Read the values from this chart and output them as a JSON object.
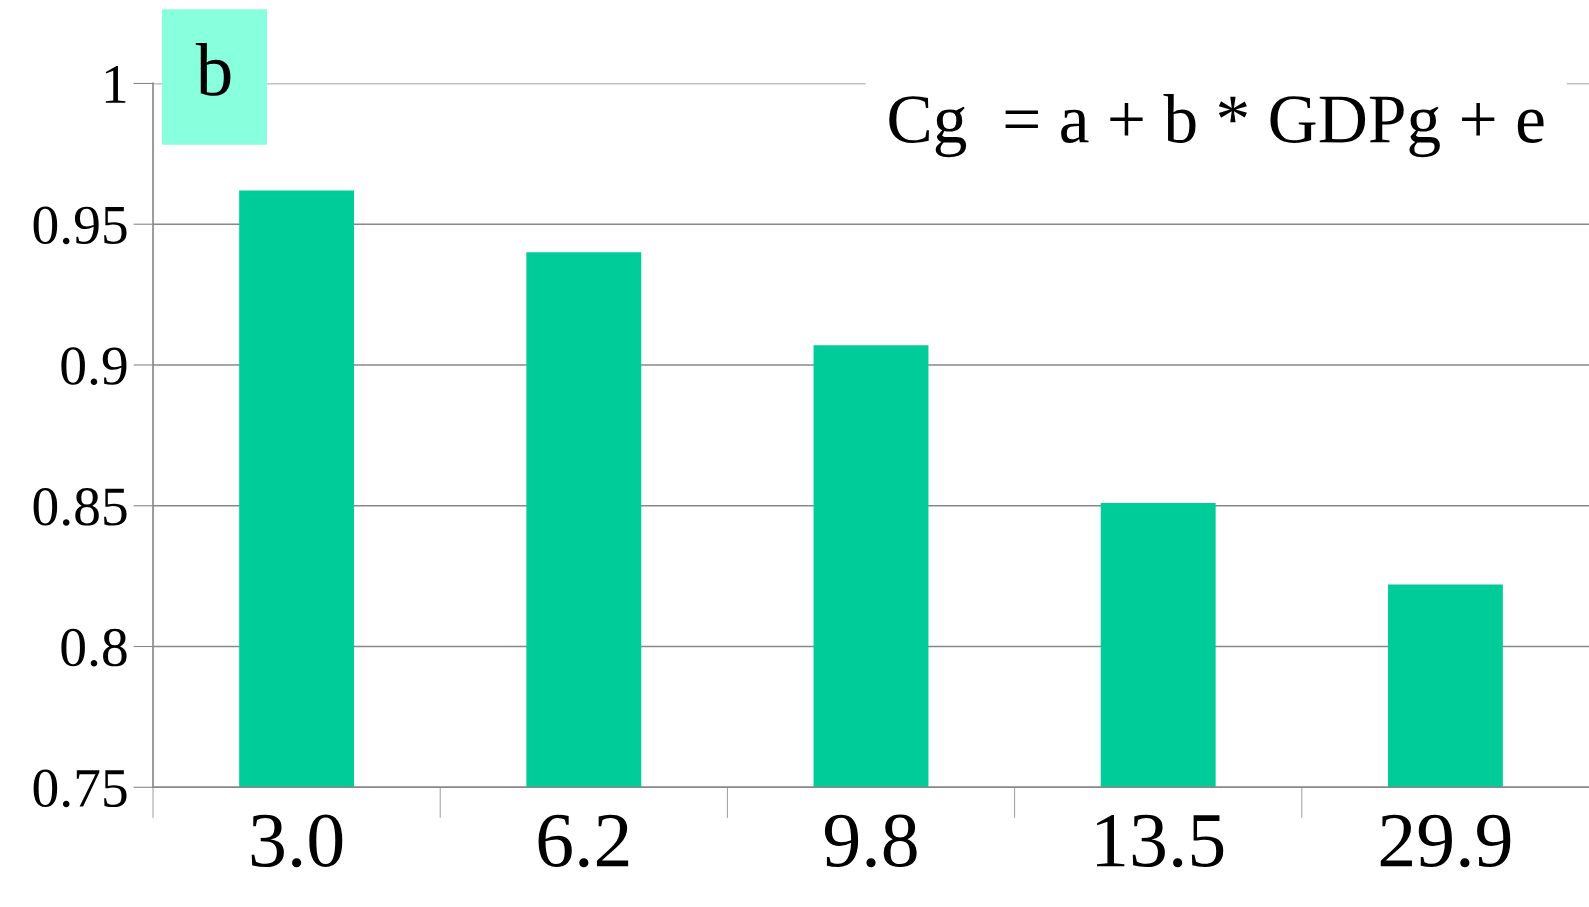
{
  "chart_data": {
    "type": "bar",
    "categories": [
      "3.0",
      "6.2",
      "9.8",
      "13.5",
      "29.9"
    ],
    "values": [
      0.962,
      0.94,
      0.907,
      0.851,
      0.822
    ],
    "color": "#00cc99",
    "ylim": [
      0.75,
      1
    ],
    "yticks": [
      0.75,
      0.8,
      0.85,
      0.9,
      0.95,
      1
    ],
    "grid": "y",
    "annotations": [
      "b",
      "Cg  = a + b * GDPg + e"
    ]
  }
}
